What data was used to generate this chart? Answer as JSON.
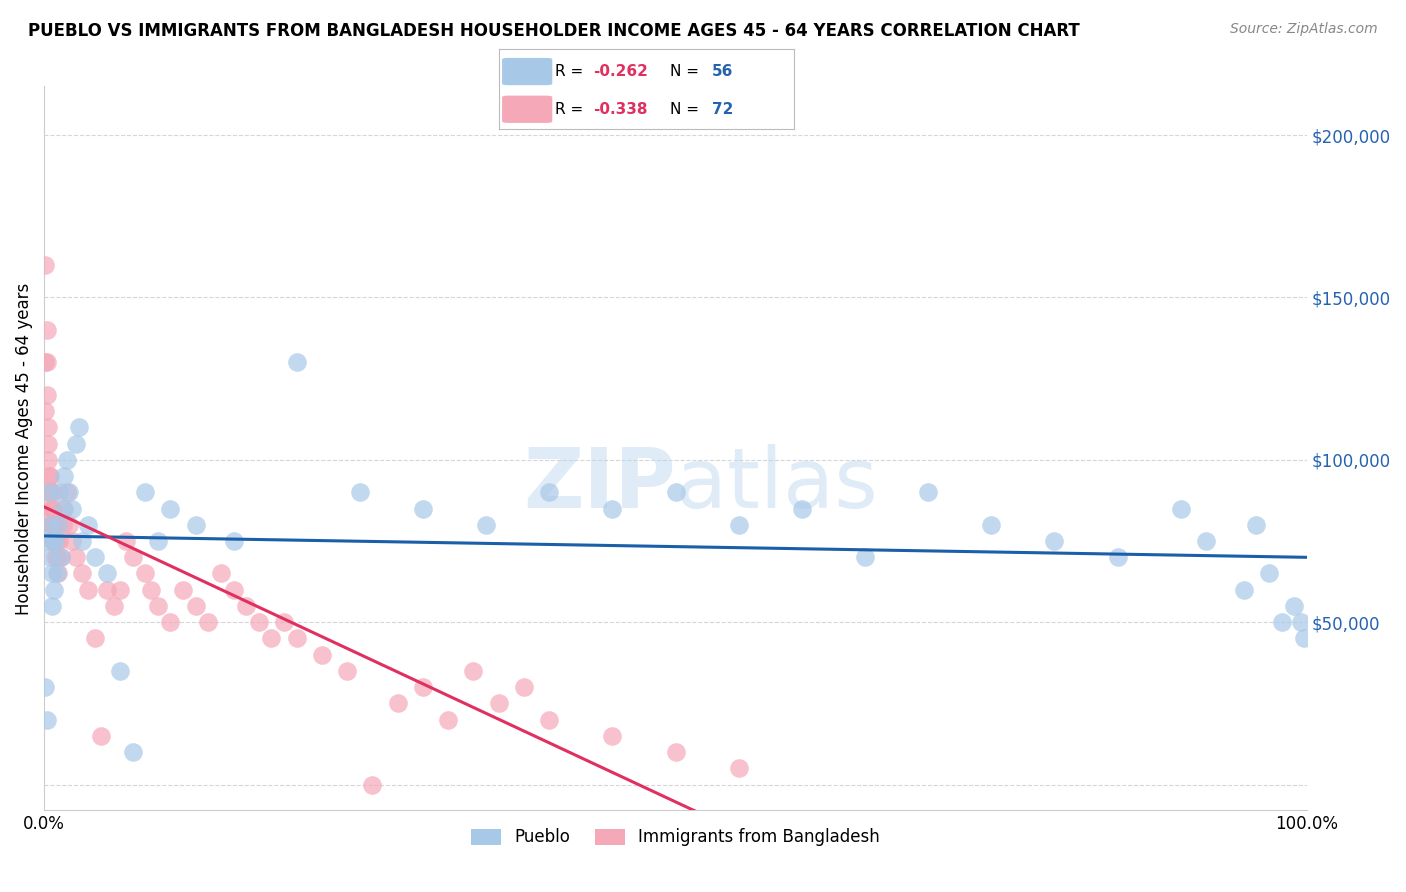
{
  "title": "PUEBLO VS IMMIGRANTS FROM BANGLADESH HOUSEHOLDER INCOME AGES 45 - 64 YEARS CORRELATION CHART",
  "source": "Source: ZipAtlas.com",
  "ylabel": "Householder Income Ages 45 - 64 years",
  "watermark_zip": "ZIP",
  "watermark_atlas": "atlas",
  "pueblo_R": "-0.262",
  "pueblo_N": "56",
  "bangladesh_R": "-0.338",
  "bangladesh_N": "72",
  "pueblo_color": "#a8c8e8",
  "pueblo_line_color": "#1a5fa8",
  "bangladesh_color": "#f4a8b8",
  "bangladesh_line_color": "#e03060",
  "legend_blue_label": "Pueblo",
  "legend_pink_label": "Immigrants from Bangladesh",
  "ytick_vals": [
    0,
    50000,
    100000,
    150000,
    200000
  ],
  "ytick_labels": [
    "",
    "$50,000",
    "$100,000",
    "$150,000",
    "$200,000"
  ],
  "pueblo_x": [
    0.001,
    0.002,
    0.003,
    0.004,
    0.005,
    0.005,
    0.006,
    0.006,
    0.007,
    0.008,
    0.009,
    0.01,
    0.011,
    0.012,
    0.013,
    0.015,
    0.016,
    0.018,
    0.02,
    0.022,
    0.025,
    0.028,
    0.03,
    0.035,
    0.04,
    0.05,
    0.06,
    0.07,
    0.08,
    0.09,
    0.1,
    0.12,
    0.15,
    0.2,
    0.25,
    0.3,
    0.35,
    0.4,
    0.45,
    0.5,
    0.55,
    0.6,
    0.65,
    0.7,
    0.75,
    0.8,
    0.85,
    0.9,
    0.92,
    0.95,
    0.96,
    0.97,
    0.98,
    0.99,
    0.995,
    0.998
  ],
  "pueblo_y": [
    30000,
    20000,
    75000,
    90000,
    70000,
    80000,
    65000,
    55000,
    75000,
    60000,
    75000,
    65000,
    80000,
    90000,
    70000,
    85000,
    95000,
    100000,
    90000,
    85000,
    105000,
    110000,
    75000,
    80000,
    70000,
    65000,
    35000,
    10000,
    90000,
    75000,
    85000,
    80000,
    75000,
    130000,
    90000,
    85000,
    80000,
    90000,
    85000,
    90000,
    80000,
    85000,
    70000,
    90000,
    80000,
    75000,
    70000,
    85000,
    75000,
    60000,
    80000,
    65000,
    50000,
    55000,
    50000,
    45000
  ],
  "bangladesh_x": [
    0.0005,
    0.001,
    0.001,
    0.002,
    0.002,
    0.002,
    0.003,
    0.003,
    0.003,
    0.004,
    0.004,
    0.004,
    0.005,
    0.005,
    0.005,
    0.006,
    0.006,
    0.006,
    0.007,
    0.007,
    0.007,
    0.008,
    0.008,
    0.009,
    0.009,
    0.01,
    0.01,
    0.011,
    0.012,
    0.013,
    0.015,
    0.016,
    0.018,
    0.02,
    0.022,
    0.025,
    0.03,
    0.035,
    0.04,
    0.045,
    0.05,
    0.055,
    0.06,
    0.065,
    0.07,
    0.08,
    0.085,
    0.09,
    0.1,
    0.11,
    0.12,
    0.13,
    0.14,
    0.15,
    0.16,
    0.17,
    0.18,
    0.19,
    0.2,
    0.22,
    0.24,
    0.26,
    0.28,
    0.3,
    0.32,
    0.34,
    0.36,
    0.38,
    0.4,
    0.45,
    0.5,
    0.55
  ],
  "bangladesh_y": [
    160000,
    130000,
    115000,
    140000,
    130000,
    120000,
    110000,
    105000,
    100000,
    95000,
    90000,
    85000,
    80000,
    95000,
    90000,
    80000,
    85000,
    80000,
    75000,
    90000,
    85000,
    80000,
    75000,
    70000,
    80000,
    75000,
    70000,
    65000,
    75000,
    70000,
    80000,
    85000,
    90000,
    80000,
    75000,
    70000,
    65000,
    60000,
    45000,
    15000,
    60000,
    55000,
    60000,
    75000,
    70000,
    65000,
    60000,
    55000,
    50000,
    60000,
    55000,
    50000,
    65000,
    60000,
    55000,
    50000,
    45000,
    50000,
    45000,
    40000,
    35000,
    0,
    25000,
    30000,
    20000,
    35000,
    25000,
    30000,
    20000,
    15000,
    10000,
    5000
  ]
}
